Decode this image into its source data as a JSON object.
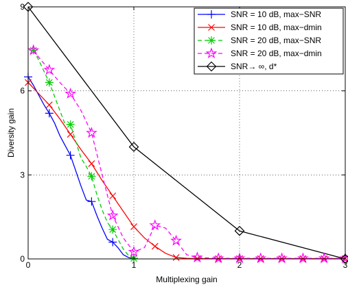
{
  "chart_data": {
    "type": "line",
    "xlabel": "Multiplexing gain",
    "ylabel": "Diversity gain",
    "xlim": [
      0,
      3
    ],
    "ylim": [
      0,
      9
    ],
    "xticks": [
      0,
      1,
      2,
      3
    ],
    "yticks": [
      0,
      3,
      6,
      9
    ],
    "grid": true,
    "legend_position": "top-right",
    "series": [
      {
        "name": "SNR = 10 dB, max−SNR",
        "color": "#0000ff",
        "line": "solid",
        "marker": "plus",
        "x": [
          0,
          0.05,
          0.1,
          0.15,
          0.2,
          0.25,
          0.3,
          0.35,
          0.4,
          0.45,
          0.5,
          0.55,
          0.6,
          0.65,
          0.7,
          0.75,
          0.8,
          0.85,
          0.9,
          0.95,
          1.0
        ],
        "y": [
          6.5,
          6.2,
          5.85,
          5.5,
          5.2,
          4.85,
          4.4,
          4.05,
          3.7,
          3.15,
          2.6,
          2.1,
          2.05,
          1.55,
          1.1,
          0.7,
          0.6,
          0.4,
          0.15,
          0.05,
          0.02
        ],
        "marker_x": [
          0,
          0.2,
          0.4,
          0.6,
          0.8,
          1.0
        ],
        "marker_y": [
          6.5,
          5.2,
          3.7,
          2.05,
          0.6,
          0.02
        ]
      },
      {
        "name": "SNR = 10 dB, max−dmin",
        "color": "#ff0000",
        "line": "solid",
        "marker": "x",
        "x": [
          0,
          0.1,
          0.2,
          0.3,
          0.4,
          0.5,
          0.6,
          0.7,
          0.8,
          0.9,
          1.0,
          1.1,
          1.2,
          1.3,
          1.4,
          1.5,
          1.6,
          1.8,
          2.0,
          2.2,
          2.4,
          2.6,
          2.8,
          3.0
        ],
        "y": [
          6.3,
          5.9,
          5.5,
          5.0,
          4.45,
          3.9,
          3.4,
          2.8,
          2.25,
          1.7,
          1.15,
          0.75,
          0.45,
          0.2,
          0.05,
          0.02,
          0.01,
          0.01,
          0.01,
          0.01,
          0.01,
          0.01,
          0.01,
          0.01
        ],
        "marker_x": [
          0,
          0.2,
          0.4,
          0.6,
          0.8,
          1.0,
          1.2,
          1.4,
          1.6,
          1.8,
          2.0,
          2.2,
          2.4,
          2.6,
          2.8,
          3.0
        ],
        "marker_y": [
          6.3,
          5.5,
          4.45,
          3.4,
          2.25,
          1.15,
          0.45,
          0.05,
          0.01,
          0.01,
          0.01,
          0.01,
          0.01,
          0.01,
          0.01,
          0.01
        ]
      },
      {
        "name": "SNR = 20 dB, max−SNR",
        "color": "#00cc00",
        "line": "dashed",
        "marker": "asterisk",
        "x": [
          0.05,
          0.1,
          0.15,
          0.2,
          0.25,
          0.3,
          0.35,
          0.4,
          0.45,
          0.5,
          0.55,
          0.6,
          0.65,
          0.7,
          0.75,
          0.8,
          0.85,
          0.9,
          0.95,
          1.0
        ],
        "y": [
          7.45,
          7.1,
          6.7,
          6.3,
          5.8,
          5.3,
          4.8,
          4.8,
          4.2,
          3.6,
          3.3,
          2.95,
          2.3,
          1.75,
          1.3,
          1.05,
          0.7,
          0.35,
          0.12,
          0.02
        ],
        "marker_x": [
          0.05,
          0.2,
          0.4,
          0.6,
          0.8,
          1.0
        ],
        "marker_y": [
          7.45,
          6.3,
          4.8,
          2.95,
          1.05,
          0.02
        ]
      },
      {
        "name": "SNR = 20 dB, max−dmin",
        "color": "#ff00ff",
        "line": "dashed",
        "marker": "pentagram",
        "x": [
          0.05,
          0.1,
          0.2,
          0.3,
          0.4,
          0.5,
          0.6,
          0.7,
          0.8,
          0.9,
          1.0,
          1.1,
          1.2,
          1.3,
          1.4,
          1.5,
          1.6,
          1.8,
          2.0,
          2.2,
          2.4,
          2.6,
          2.8,
          3.0
        ],
        "y": [
          7.45,
          7.2,
          6.75,
          6.3,
          5.9,
          5.3,
          4.5,
          3.0,
          1.55,
          0.75,
          0.25,
          0.4,
          1.2,
          1.1,
          0.65,
          0.15,
          0.05,
          0.02,
          0.02,
          0.02,
          0.02,
          0.02,
          0.02,
          0.02
        ],
        "marker_x": [
          0.05,
          0.2,
          0.4,
          0.6,
          0.8,
          1.0,
          1.2,
          1.4,
          1.6,
          1.8,
          2.0,
          2.2,
          2.4,
          2.6,
          2.8,
          3.0
        ],
        "marker_y": [
          7.45,
          6.75,
          5.9,
          4.5,
          1.55,
          0.25,
          1.2,
          0.65,
          0.05,
          0.02,
          0.02,
          0.02,
          0.02,
          0.02,
          0.02,
          0.02
        ]
      },
      {
        "name": "SNR→ ∞, d*",
        "color": "#000000",
        "line": "solid",
        "marker": "diamond",
        "x": [
          0,
          1,
          2,
          3
        ],
        "y": [
          9,
          4,
          1,
          0
        ],
        "marker_x": [
          0,
          1,
          2,
          3
        ],
        "marker_y": [
          9,
          4,
          1,
          0
        ]
      }
    ]
  }
}
